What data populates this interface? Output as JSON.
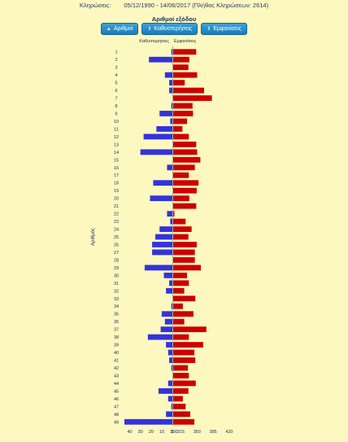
{
  "header": {
    "label": "Κληρώσεις:",
    "range": "05/12/1990 - 14/06/2017",
    "count": "(Πλήθος Κληρώσεων: 2614)"
  },
  "title": "Αριθμοί εξόδου",
  "buttons": [
    {
      "label": "Αριθμοί",
      "icon": "sort-up-icon"
    },
    {
      "label": "Καθυστερήσεις",
      "icon": "sort-icon"
    },
    {
      "label": "Εμφανίσεις",
      "icon": "sort-icon"
    }
  ],
  "chart_data": {
    "type": "bar",
    "orientation": "horizontal-diverging",
    "ylabel": "Αριθμός",
    "categories": [
      "1",
      "2",
      "3",
      "4",
      "5",
      "6",
      "7",
      "8",
      "9",
      "10",
      "11",
      "12",
      "13",
      "14",
      "15",
      "16",
      "17",
      "18",
      "19",
      "20",
      "21",
      "22",
      "23",
      "24",
      "25",
      "26",
      "27",
      "28",
      "29",
      "30",
      "31",
      "32",
      "33",
      "34",
      "35",
      "36",
      "37",
      "38",
      "39",
      "40",
      "41",
      "42",
      "43",
      "44",
      "45",
      "46",
      "47",
      "48",
      "49"
    ],
    "series": [
      {
        "name": "Καθυστερήσεις",
        "color": "#3333dd",
        "ticks": [
          "40",
          "30",
          "20",
          "10",
          "0"
        ],
        "xlim": [
          0,
          45
        ],
        "values": [
          1,
          22,
          0,
          7,
          3,
          3,
          0,
          1,
          12,
          2,
          15,
          27,
          0,
          30,
          0,
          5,
          0,
          18,
          0,
          21,
          0,
          5,
          2,
          12,
          16,
          19,
          19,
          0,
          26,
          8,
          3,
          6,
          0,
          1,
          10,
          7,
          11,
          23,
          6,
          4,
          3,
          1,
          0,
          4,
          13,
          4,
          1,
          6,
          45
        ]
      },
      {
        "name": "Εμφανίσεις",
        "color": "#cc0000",
        "ticks": [
          "300",
          "315",
          "350",
          "385",
          "420"
        ],
        "xlim": [
          300,
          420
        ],
        "values": [
          350,
          335,
          333,
          352,
          325,
          367,
          384,
          342,
          343,
          330,
          320,
          334,
          350,
          352,
          359,
          347,
          334,
          355,
          351,
          335,
          350,
          298,
          327,
          340,
          333,
          351,
          347,
          347,
          360,
          330,
          334,
          324,
          348,
          321,
          344,
          324,
          372,
          334,
          365,
          346,
          348,
          332,
          334,
          349,
          333,
          321,
          327,
          337,
          346
        ]
      }
    ],
    "grid": false
  }
}
